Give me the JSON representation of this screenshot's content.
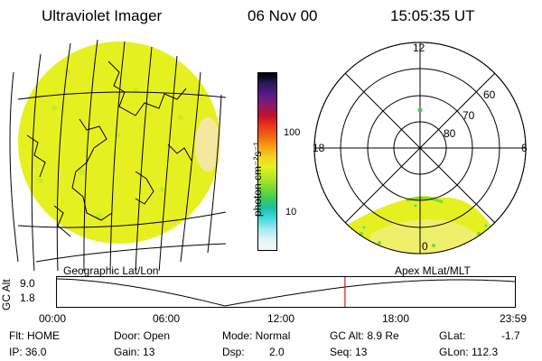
{
  "header": {
    "title": "Ultraviolet Imager",
    "date": "06 Nov 00",
    "time": "15:05:35 UT"
  },
  "colorbar": {
    "unit_label": "photon cm⁻²s⁻¹",
    "ticks": [
      "100",
      "10"
    ],
    "colors": [
      "#000000",
      "#2a1a5a",
      "#5a1a8a",
      "#8a1a6a",
      "#c0102a",
      "#e83018",
      "#f06010",
      "#f89a10",
      "#f4d020",
      "#e6f020",
      "#b4e624",
      "#7cd832",
      "#3ccc58",
      "#1cc0a0",
      "#40d8e0",
      "#a0e8f0",
      "#e0f4f8",
      "#f4f8fa"
    ]
  },
  "polar": {
    "mlt_labels": {
      "top": "12",
      "left": "18",
      "right": "6",
      "bottom": "0"
    },
    "lat_labels": [
      "60",
      "70",
      "80"
    ]
  },
  "panel_labels": {
    "left": "Geographic Lat/Lon",
    "right": "Apex MLat/MLT"
  },
  "altitude_plot": {
    "axis_label": "GC Alt",
    "y_ticks": [
      "9.0",
      "1.8"
    ],
    "x_ticks": [
      "00:00",
      "06:00",
      "12:00",
      "18:00",
      "23:59"
    ],
    "current_time_marker_hours": 15.09
  },
  "info": {
    "flt": "Flt: HOME",
    "ip": "IP: 36.0",
    "door": "Door: Open",
    "gain": "Gain: 13",
    "mode": "Mode: Normal",
    "dsp_label": "Dsp:",
    "dsp_value": "2.0",
    "gc_alt": "GC Alt: 8.9 Re",
    "seq": "Seq: 13",
    "glat_label": "GLat:",
    "glat_value": "-1.7",
    "glon": "GLon: 112.3"
  }
}
